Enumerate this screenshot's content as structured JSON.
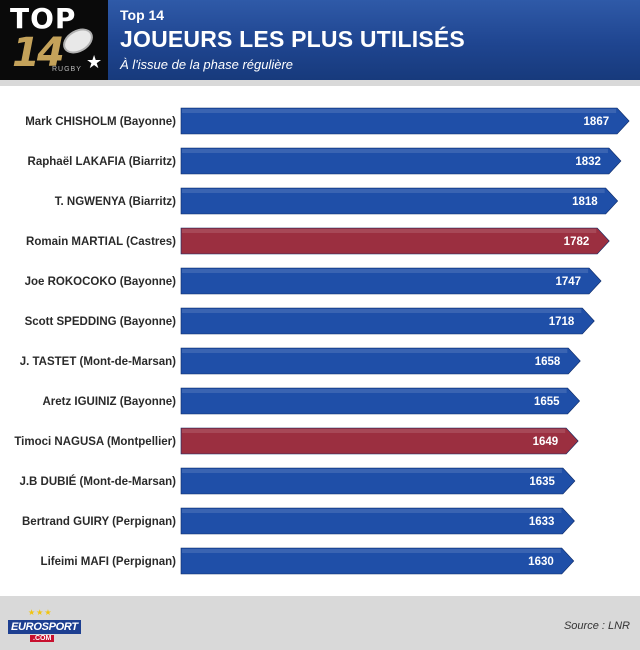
{
  "header": {
    "kicker": "Top 14",
    "title": "JOUEURS LES PLUS UTILISÉS",
    "subtitle": "À l'issue de la phase régulière"
  },
  "logo": {
    "top_text": "TOP",
    "number_text": "14",
    "rugby_text": "RUGBY"
  },
  "footer": {
    "brand_main": "EUROSPORT",
    "brand_suffix": ".COM",
    "source": "Source : LNR"
  },
  "colors": {
    "header_blue": "#1f4590",
    "bar_blue": "#1f4fa8",
    "bar_red": "#9b2f40",
    "background_gray": "#d9d9d9"
  },
  "chart_data": {
    "type": "bar",
    "orientation": "horizontal",
    "title": "JOUEURS LES PLUS UTILISÉS",
    "subtitle": "À l'issue de la phase régulière",
    "xlabel": "",
    "ylabel": "",
    "categories": [
      "Mark CHISHOLM (Bayonne)",
      "Raphaël LAKAFIA (Biarritz)",
      "T. NGWENYA (Biarritz)",
      "Romain MARTIAL (Castres)",
      "Joe ROKOCOKO (Bayonne)",
      "Scott SPEDDING (Bayonne)",
      "J. TASTET (Mont-de-Marsan)",
      "Aretz IGUINIZ (Bayonne)",
      "Timoci NAGUSA (Montpellier)",
      "J.B DUBIÉ (Mont-de-Marsan)",
      "Bertrand GUIRY (Perpignan)",
      "Lifeimi MAFI (Perpignan)"
    ],
    "values": [
      1867,
      1832,
      1818,
      1782,
      1747,
      1718,
      1658,
      1655,
      1649,
      1635,
      1633,
      1630
    ],
    "highlighted": [
      false,
      false,
      false,
      true,
      false,
      false,
      false,
      false,
      true,
      false,
      false,
      false
    ],
    "grid": false,
    "legend": "none"
  }
}
